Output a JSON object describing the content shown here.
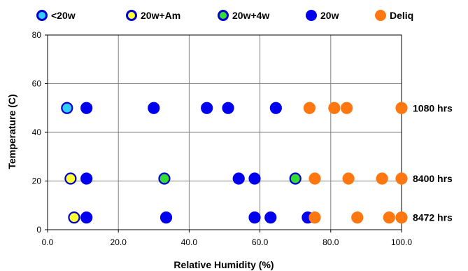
{
  "chart_data": {
    "type": "scatter",
    "xlabel": "Relative Humidity (%)",
    "ylabel": "Temperature (C)",
    "xlim": [
      0,
      100
    ],
    "ylim": [
      0,
      80
    ],
    "x_tick_labels": [
      "0.0",
      "20.0",
      "40.0",
      "60.0",
      "80.0",
      "100.0"
    ],
    "y_tick_labels": [
      "0",
      "20",
      "40",
      "60",
      "80"
    ],
    "grid": true,
    "legend_position": "top",
    "series": [
      {
        "name": "<20w",
        "fill": "#33ccff",
        "stroke": "#0000cc",
        "points": [
          [
            5.5,
            50
          ]
        ]
      },
      {
        "name": "20w+Am",
        "fill": "#ffff33",
        "stroke": "#0000cc",
        "points": [
          [
            6.5,
            21
          ],
          [
            7.5,
            5
          ]
        ]
      },
      {
        "name": "20w+4w",
        "fill": "#33dd33",
        "stroke": "#0000cc",
        "points": [
          [
            33,
            21
          ],
          [
            70,
            21
          ]
        ]
      },
      {
        "name": "20w",
        "fill": "#0000ee",
        "stroke": "#0000ee",
        "points": [
          [
            11,
            50
          ],
          [
            30,
            50
          ],
          [
            45,
            50
          ],
          [
            51,
            50
          ],
          [
            64.5,
            50
          ],
          [
            11,
            21
          ],
          [
            54,
            21
          ],
          [
            58.5,
            21
          ],
          [
            11,
            5
          ],
          [
            33.5,
            5
          ],
          [
            58.5,
            5
          ],
          [
            63,
            5
          ],
          [
            73.5,
            5
          ]
        ]
      },
      {
        "name": "Deliq",
        "fill": "#ff7711",
        "stroke": "#ff7711",
        "points": [
          [
            74,
            50
          ],
          [
            81,
            50
          ],
          [
            84.5,
            50
          ],
          [
            100,
            50
          ],
          [
            75.5,
            21
          ],
          [
            85,
            21
          ],
          [
            94.5,
            21
          ],
          [
            100,
            21
          ],
          [
            75.5,
            5
          ],
          [
            87.5,
            5
          ],
          [
            96.5,
            5
          ],
          [
            100,
            5
          ]
        ]
      }
    ],
    "annotations": [
      {
        "text": "1080 hrs",
        "y": 50
      },
      {
        "text": "8400 hrs",
        "y": 21
      },
      {
        "text": "8472 hrs",
        "y": 5
      }
    ]
  }
}
